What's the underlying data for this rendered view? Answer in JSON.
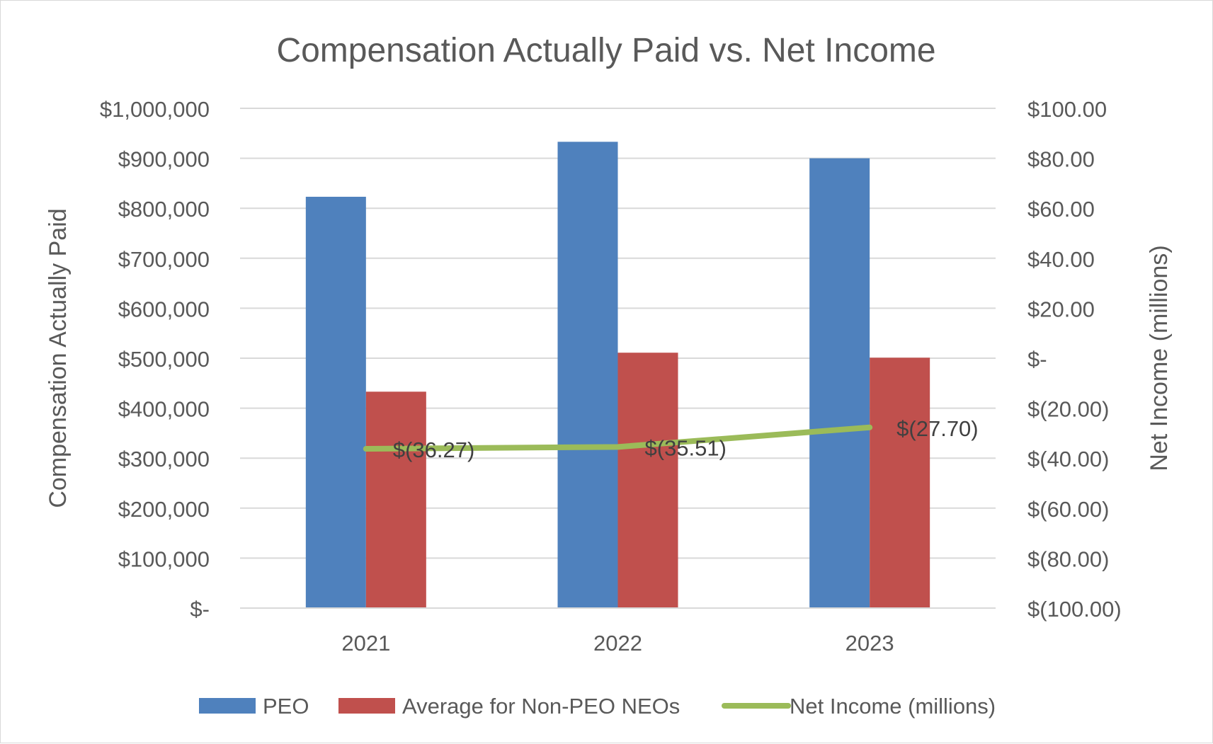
{
  "chart_data": {
    "type": "bar",
    "title": "Compensation Actually Paid vs. Net Income",
    "categories": [
      "2021",
      "2022",
      "2023"
    ],
    "y_left": {
      "label": "Compensation Actually Paid",
      "range": [
        0,
        1000000
      ],
      "ticks": [
        0,
        100000,
        200000,
        300000,
        400000,
        500000,
        600000,
        700000,
        800000,
        900000,
        1000000
      ],
      "tick_labels": [
        "$-",
        "$100,000",
        "$200,000",
        "$300,000",
        "$400,000",
        "$500,000",
        "$600,000",
        "$700,000",
        "$800,000",
        "$900,000",
        "$1,000,000"
      ]
    },
    "y_right": {
      "label": "Net Income (millions)",
      "range": [
        -100,
        100
      ],
      "ticks": [
        -100,
        -80,
        -60,
        -40,
        -20,
        0,
        20,
        40,
        60,
        80,
        100
      ],
      "tick_labels": [
        "$(100.00)",
        "$(80.00)",
        "$(60.00)",
        "$(40.00)",
        "$(20.00)",
        "$-",
        "$20.00",
        "$40.00",
        "$60.00",
        "$80.00",
        "$100.00"
      ]
    },
    "series": [
      {
        "name": "PEO",
        "type": "bar",
        "axis": "left",
        "color": "#4f81bd",
        "values": [
          823000,
          933000,
          900000
        ]
      },
      {
        "name": "Average for Non-PEO NEOs",
        "type": "bar",
        "axis": "left",
        "color": "#c0504d",
        "values": [
          433000,
          511000,
          501000
        ]
      },
      {
        "name": "Net Income (millions)",
        "type": "line",
        "axis": "right",
        "color": "#9bbb59",
        "values": [
          -36.27,
          -35.51,
          -27.7
        ],
        "data_labels": [
          "$(36.27)",
          "$(35.51)",
          "$(27.70)"
        ]
      }
    ],
    "grid": true,
    "legend_position": "bottom"
  }
}
